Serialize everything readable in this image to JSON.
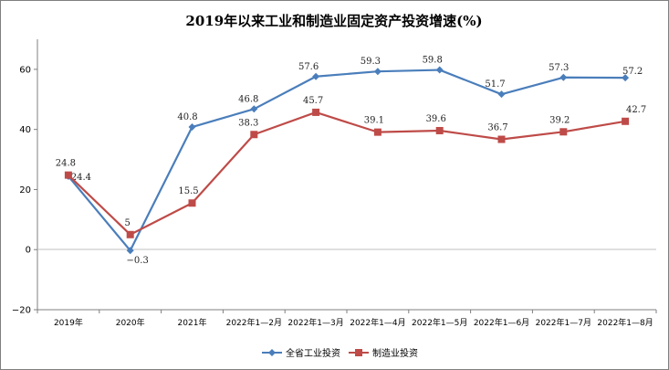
{
  "chart_data": {
    "type": "line",
    "title": "2019年以来工业和制造业固定资产投资增速(%)",
    "xlabel": "",
    "ylabel": "",
    "ylim": [
      -20,
      70
    ],
    "yticks": [
      -20,
      0,
      20,
      40,
      60
    ],
    "grid": false,
    "legend_position": "bottom-center",
    "categories": [
      "2019年",
      "2020年",
      "2021年",
      "2022年1—2月",
      "2022年1—3月",
      "2022年1—4月",
      "2022年1—5月",
      "2022年1—6月",
      "2022年1—7月",
      "2022年1—8月"
    ],
    "series": [
      {
        "name": "全省工业投资",
        "color": "#4a7ebb",
        "marker": "diamond",
        "values": [
          24.4,
          -0.3,
          40.8,
          46.8,
          57.6,
          59.3,
          59.8,
          51.7,
          57.3,
          57.2
        ],
        "labels": [
          "24.4",
          "−0.3",
          "40.8",
          "46.8",
          "57.6",
          "59.3",
          "59.8",
          "51.7",
          "57.3",
          "57.2"
        ]
      },
      {
        "name": "制造业投资",
        "color": "#be4b48",
        "marker": "square",
        "values": [
          24.8,
          5,
          15.5,
          38.3,
          45.7,
          39.1,
          39.6,
          36.7,
          39.2,
          42.7
        ],
        "labels": [
          "24.8",
          "5",
          "15.5",
          "38.3",
          "45.7",
          "39.1",
          "39.6",
          "36.7",
          "39.2",
          "42.7"
        ]
      }
    ]
  }
}
